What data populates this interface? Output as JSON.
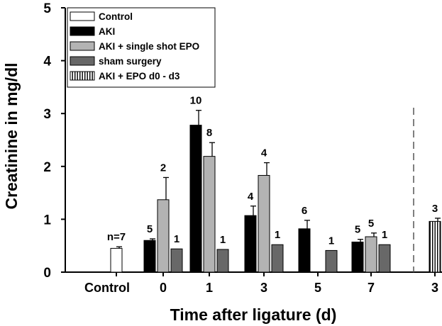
{
  "chart_data": {
    "type": "bar",
    "xlabel": "Time after ligature (d)",
    "ylabel": "Creatinine in mg/dl",
    "ylim": [
      0,
      5
    ],
    "yticks": [
      "0",
      "1",
      "2",
      "3",
      "4",
      "5"
    ],
    "grid": false,
    "legend_position": "top-left",
    "groups": [
      {
        "label": "Control",
        "bars": [
          {
            "series": "Control",
            "value": 0.45,
            "error": 0.03,
            "n": "n=7"
          }
        ]
      },
      {
        "label": "0",
        "bars": [
          {
            "series": "AKI",
            "value": 0.6,
            "error": 0.03,
            "n": "5"
          },
          {
            "series": "AKI + single shot EPO",
            "value": 1.37,
            "error": 0.42,
            "n": "2"
          },
          {
            "series": "sham surgery",
            "value": 0.44,
            "error": 0,
            "n": "1"
          }
        ]
      },
      {
        "label": "1",
        "bars": [
          {
            "series": "AKI",
            "value": 2.78,
            "error": 0.28,
            "n": "10"
          },
          {
            "series": "AKI + single shot EPO",
            "value": 2.19,
            "error": 0.26,
            "n": "8"
          },
          {
            "series": "sham surgery",
            "value": 0.43,
            "error": 0,
            "n": "1"
          }
        ]
      },
      {
        "label": "3",
        "bars": [
          {
            "series": "AKI",
            "value": 1.07,
            "error": 0.18,
            "n": "4"
          },
          {
            "series": "AKI + single shot EPO",
            "value": 1.83,
            "error": 0.24,
            "n": "4"
          },
          {
            "series": "sham surgery",
            "value": 0.52,
            "error": 0,
            "n": "1"
          }
        ]
      },
      {
        "label": "5",
        "bars": [
          {
            "series": "AKI",
            "value": 0.82,
            "error": 0.16,
            "n": "6"
          },
          {
            "series": "sham surgery",
            "value": 0.41,
            "error": 0,
            "n": "1"
          }
        ]
      },
      {
        "label": "7",
        "bars": [
          {
            "series": "AKI",
            "value": 0.57,
            "error": 0.05,
            "n": "5"
          },
          {
            "series": "AKI + single shot EPO",
            "value": 0.67,
            "error": 0.07,
            "n": "5"
          },
          {
            "series": "sham surgery",
            "value": 0.52,
            "error": 0,
            "n": "1"
          }
        ]
      },
      {
        "label": "3",
        "bars": [
          {
            "series": "AKI + EPO d0 - d3",
            "value": 0.96,
            "error": 0.06,
            "n": "3"
          }
        ]
      }
    ],
    "legend": [
      {
        "label": "Control",
        "fill": "#ffffff",
        "pattern": "none"
      },
      {
        "label": "AKI",
        "fill": "#000000",
        "pattern": "none"
      },
      {
        "label": "AKI + single shot EPO",
        "fill": "#b3b3b3",
        "pattern": "none"
      },
      {
        "label": "sham surgery",
        "fill": "#686868",
        "pattern": "none"
      },
      {
        "label": "AKI + EPO d0 - d3",
        "fill": "#ffffff",
        "pattern": "vertical-stripes"
      }
    ],
    "divider": "dashed vertical line between group 7 and final group 3"
  }
}
